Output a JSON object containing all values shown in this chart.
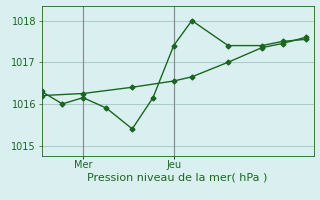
{
  "background_color": "#daf0f0",
  "grid_color": "#aacccc",
  "line_color": "#1a6620",
  "y_ticks": [
    1015,
    1016,
    1017,
    1018
  ],
  "ylim": [
    1014.75,
    1018.35
  ],
  "xlim": [
    0,
    10.5
  ],
  "xlabel": "Pression niveau de la mer( hPa )",
  "line1_x": [
    0.0,
    0.8,
    1.6,
    2.5,
    3.5,
    4.3,
    5.1,
    5.8,
    7.2,
    8.5,
    9.3,
    10.2
  ],
  "line1_y": [
    1016.3,
    1016.0,
    1016.15,
    1015.9,
    1015.4,
    1016.15,
    1017.4,
    1018.0,
    1017.4,
    1017.4,
    1017.5,
    1017.55
  ],
  "line2_x": [
    0.0,
    1.6,
    3.5,
    5.1,
    5.8,
    7.2,
    8.5,
    9.3,
    10.2
  ],
  "line2_y": [
    1016.2,
    1016.25,
    1016.4,
    1016.55,
    1016.65,
    1017.0,
    1017.35,
    1017.45,
    1017.6
  ],
  "mer_x": 1.6,
  "jeu_x": 5.1,
  "ver_line_color": "#888888",
  "mer_label": "Mer",
  "jeu_label": "Jeu",
  "tick_fontsize": 7,
  "xlabel_fontsize": 8
}
